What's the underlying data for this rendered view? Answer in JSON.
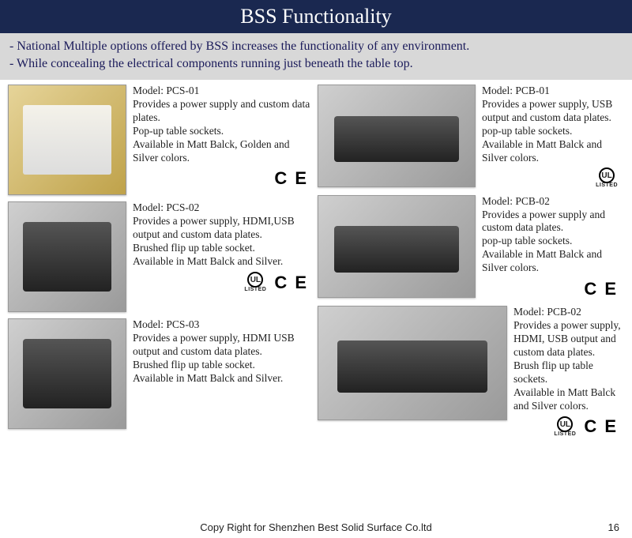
{
  "header": {
    "title": "BSS Functionality",
    "subtitle_line1": "- National Multiple options offered by BSS increases the functionality of any environment.",
    "subtitle_line2": "- While concealing the electrical components running just  beneath the table top."
  },
  "colors": {
    "title_bg": "#1a2850",
    "title_fg": "#ffffff",
    "subtitle_bg": "#d8d8d8",
    "subtitle_fg": "#1a1a5a",
    "page_bg": "#ffffff"
  },
  "left": [
    {
      "model": "Model: PCS-01",
      "text": "Provides a power supply and custom data plates.\nPop-up table sockets.\nAvailable in Matt Balck, Golden and Silver colors.",
      "thumb_w": 150,
      "thumb_h": 140,
      "thumb_class": "gold",
      "marks": [
        "ce"
      ]
    },
    {
      "model": "Model: PCS-02",
      "text": "Provides a power supply, HDMI,USB output and custom data plates.\nBrushed flip up table socket.\nAvailable in Matt Balck and Silver.",
      "thumb_w": 150,
      "thumb_h": 140,
      "thumb_class": "",
      "marks": [
        "ul",
        "ce"
      ]
    },
    {
      "model": "Model: PCS-03",
      "text": "Provides a power supply, HDMI USB output and custom data plates.\nBrushed flip up table socket.\nAvailable in Matt Balck and Silver.",
      "thumb_w": 150,
      "thumb_h": 140,
      "thumb_class": "",
      "marks": []
    }
  ],
  "right": [
    {
      "model": "Model: PCB-01",
      "text": "Provides a power supply, USB output and custom data plates.\npop-up table sockets.\nAvailable in Matt Balck and Silver colors.",
      "thumb_w": 200,
      "thumb_h": 130,
      "thumb_class": "wide",
      "marks": [
        "ul"
      ]
    },
    {
      "model": "Model: PCB-02",
      "text": "Provides a power supply and custom data plates.\npop-up table sockets.\nAvailable in Matt Balck and Silver colors.",
      "thumb_w": 200,
      "thumb_h": 130,
      "thumb_class": "wide",
      "marks": [
        "ce"
      ]
    },
    {
      "model": "Model: PCB-02",
      "text": "Provides a power supply, HDMI, USB output and custom data plates.\nBrush flip up table sockets.\nAvailable in Matt Balck and Silver colors.",
      "thumb_w": 240,
      "thumb_h": 145,
      "thumb_class": "wide",
      "marks": [
        "ul",
        "ce"
      ]
    }
  ],
  "footer": {
    "copy": "Copy Right for Shenzhen Best Solid Surface Co.ltd",
    "page": "16"
  },
  "labels": {
    "ce": "C E",
    "ul": "UL",
    "ul_sub": "LISTED"
  }
}
